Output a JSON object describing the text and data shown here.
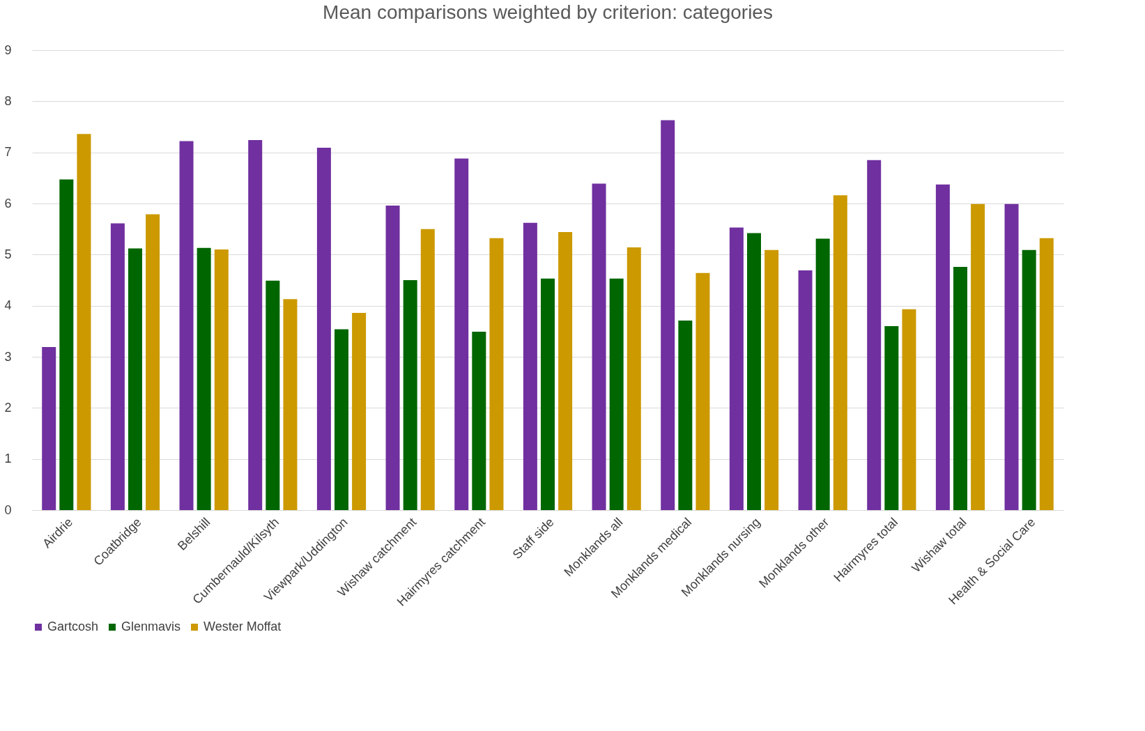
{
  "chart_data": {
    "type": "bar",
    "title": "Mean comparisons weighted by criterion: categories",
    "categories": [
      "Airdrie",
      "Coatbridge",
      "Belshill",
      "Cumbernauld/Kilsyth",
      "Viewpark/Uddington",
      "Wishaw catchment",
      "Hairmyres catchment",
      "Staff side",
      "Monklands all",
      "Monklands medical",
      "Monklands nursing",
      "Monklands other",
      "Hairmyres total",
      "Wishaw total",
      "Health & Social Care"
    ],
    "series": [
      {
        "name": "Gartcosh",
        "color": "#7030a0",
        "values": [
          3.19,
          5.61,
          7.22,
          7.24,
          7.09,
          5.96,
          6.88,
          5.62,
          6.39,
          7.63,
          5.53,
          4.69,
          6.85,
          6.37,
          5.99
        ]
      },
      {
        "name": "Glenmavis",
        "color": "#006600",
        "values": [
          6.47,
          5.12,
          5.13,
          4.49,
          3.54,
          4.5,
          3.49,
          4.53,
          4.53,
          3.71,
          5.42,
          5.31,
          3.6,
          4.76,
          5.09
        ]
      },
      {
        "name": "Wester Moffat",
        "color": "#cc9900",
        "values": [
          7.36,
          5.79,
          5.1,
          4.13,
          3.86,
          5.5,
          5.32,
          5.44,
          5.14,
          4.64,
          5.09,
          6.16,
          3.93,
          5.99,
          5.32
        ]
      }
    ],
    "ylim": [
      0,
      9
    ],
    "yticks": [
      0,
      1,
      2,
      3,
      4,
      5,
      6,
      7,
      8,
      9
    ],
    "grid": "y",
    "legend": "bottom"
  }
}
